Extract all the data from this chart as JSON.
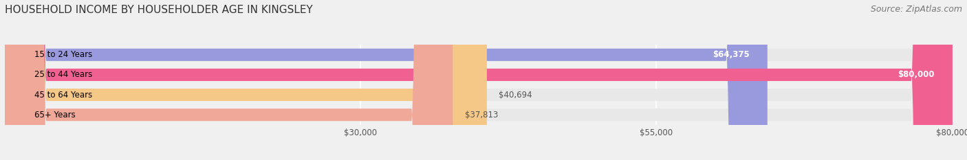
{
  "title": "HOUSEHOLD INCOME BY HOUSEHOLDER AGE IN KINGSLEY",
  "source": "Source: ZipAtlas.com",
  "categories": [
    "15 to 24 Years",
    "25 to 44 Years",
    "45 to 64 Years",
    "65+ Years"
  ],
  "values": [
    64375,
    80000,
    40694,
    37813
  ],
  "bar_colors": [
    "#9999dd",
    "#f06090",
    "#f5c888",
    "#f0a898"
  ],
  "bar_labels": [
    "$64,375",
    "$80,000",
    "$40,694",
    "$37,813"
  ],
  "label_inside": [
    true,
    true,
    false,
    false
  ],
  "xlim": [
    0,
    80000
  ],
  "xticks": [
    30000,
    55000,
    80000
  ],
  "xticklabels": [
    "$30,000",
    "$55,000",
    "$80,000"
  ],
  "background_color": "#f0f0f0",
  "bar_background_color": "#e8e8e8",
  "title_fontsize": 11,
  "source_fontsize": 9
}
